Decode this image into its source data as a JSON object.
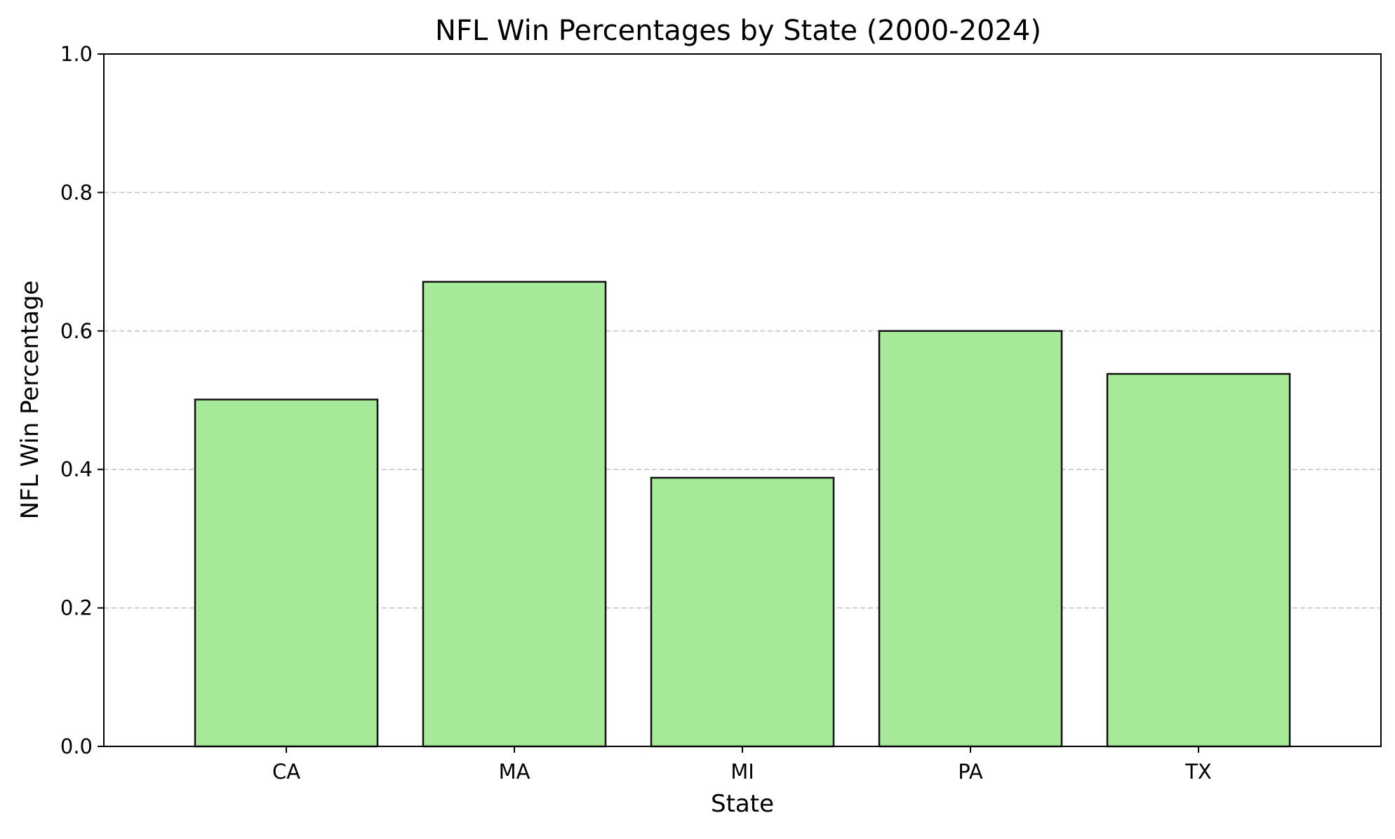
{
  "chart_data": {
    "type": "bar",
    "title": "NFL Win Percentages by State (2000-2024)",
    "xlabel": "State",
    "ylabel": "NFL Win Percentage",
    "categories": [
      "CA",
      "MA",
      "MI",
      "PA",
      "TX"
    ],
    "values": [
      0.501,
      0.671,
      0.388,
      0.6,
      0.538
    ],
    "ylim": [
      0.0,
      1.0
    ],
    "yticks": [
      "0.0",
      "0.2",
      "0.4",
      "0.6",
      "0.8",
      "1.0"
    ],
    "grid": "y-dashed",
    "legend": "none",
    "colors": {
      "bar_fill": "#a6e998",
      "bar_edge": "#111111",
      "grid": "#c0c0c0",
      "axes": "#000000"
    }
  }
}
